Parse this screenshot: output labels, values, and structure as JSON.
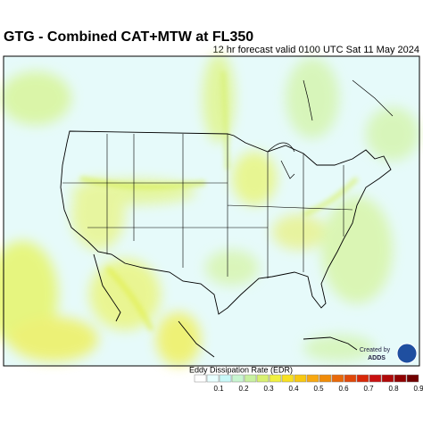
{
  "header": {
    "title": "GTG - Combined CAT+MTW at FL350",
    "subtitle": "12 hr forecast valid 0100 UTC Sat 11 May 2024"
  },
  "legend": {
    "label": "Eddy Dissipation Rate (EDR)",
    "ticks": [
      0.1,
      0.2,
      0.3,
      0.4,
      0.5,
      0.6,
      0.7,
      0.8,
      0.9
    ]
  },
  "credit": {
    "line1": "Created by",
    "line2": "ADDS"
  }
}
